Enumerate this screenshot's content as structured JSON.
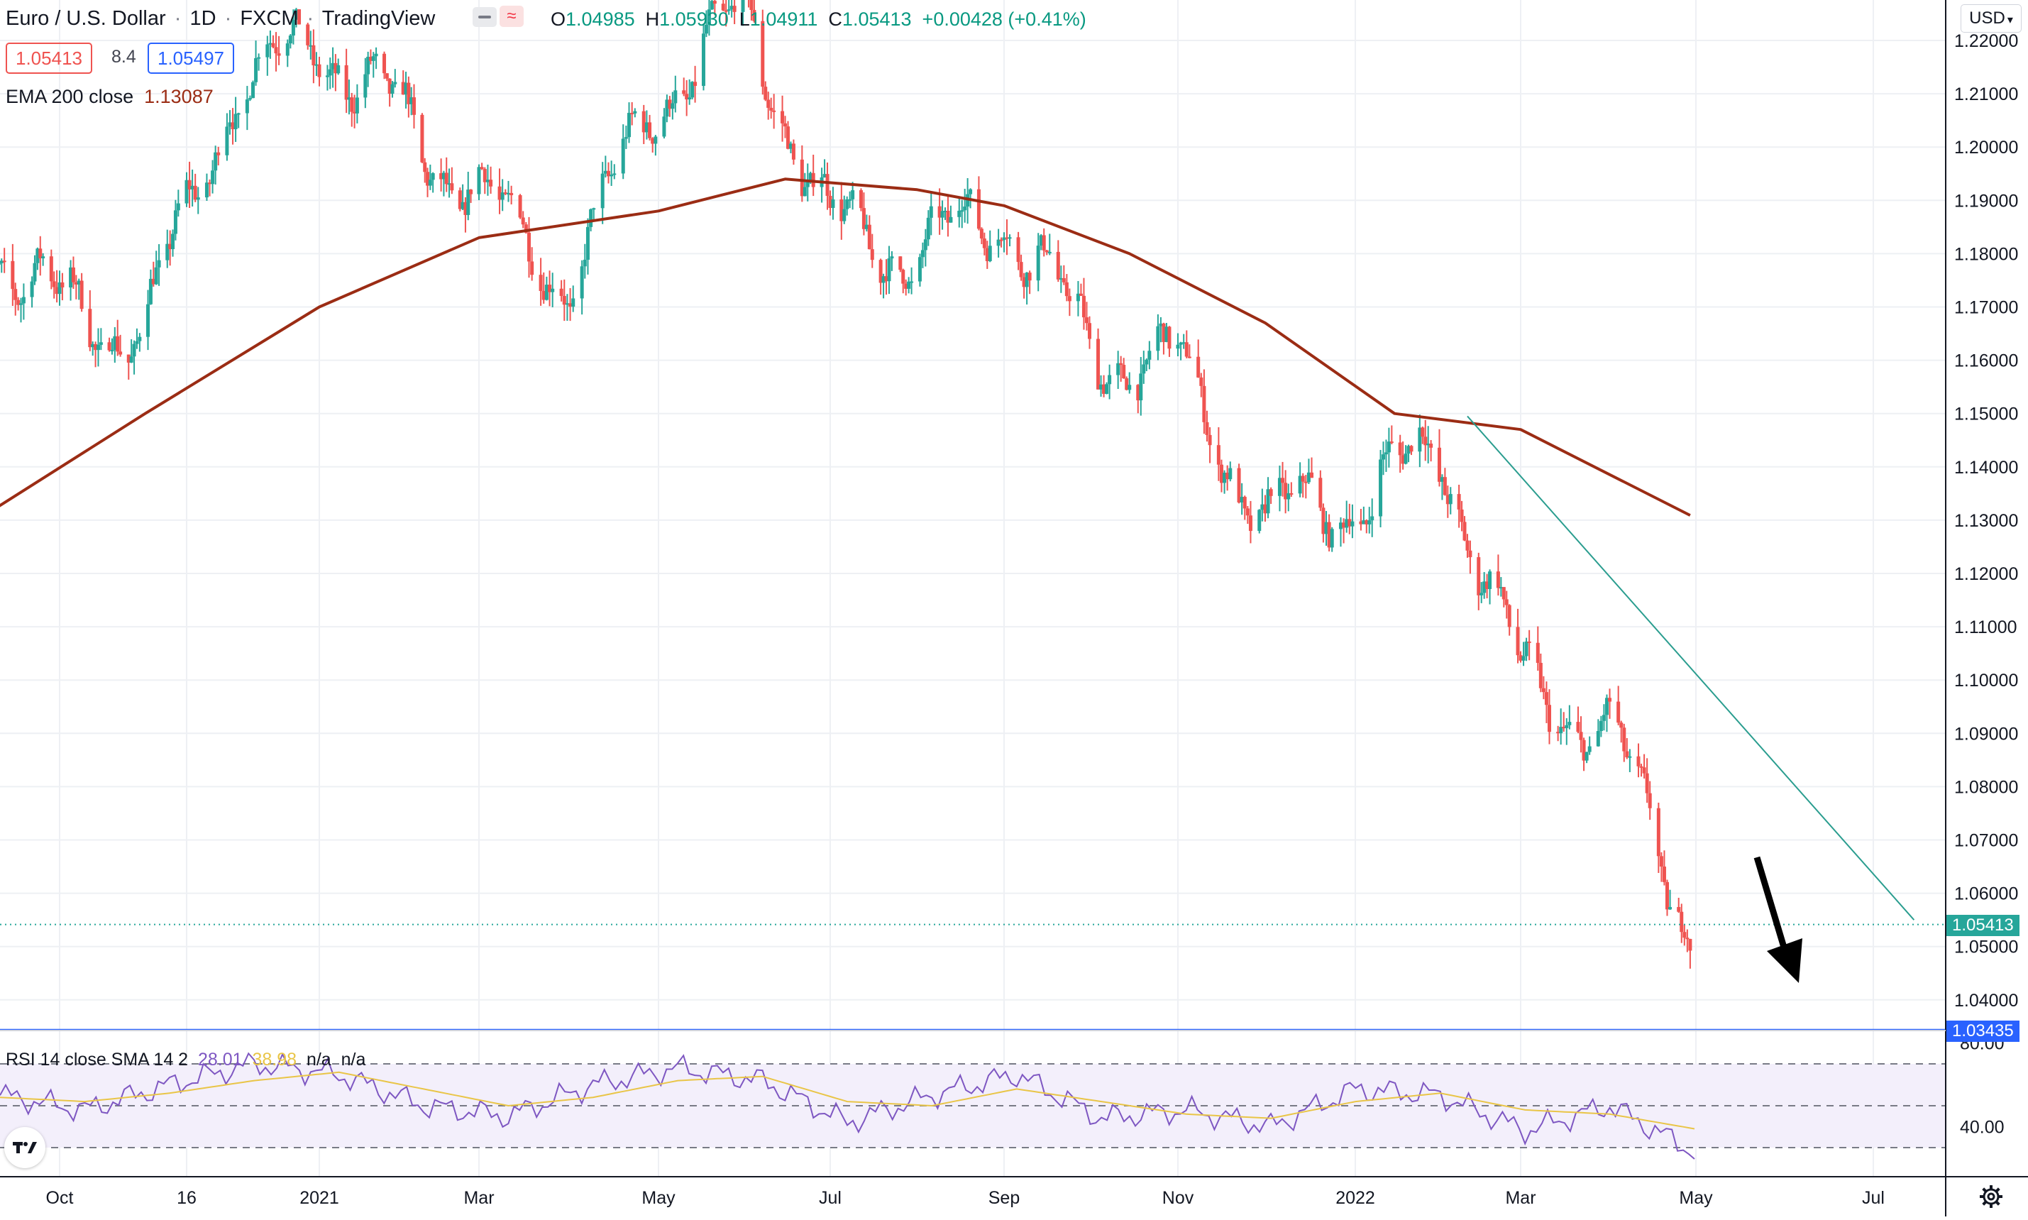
{
  "header": {
    "symbol": "Euro / U.S. Dollar",
    "interval": "1D",
    "exchange": "FXCM",
    "source": "TradingView",
    "ohlc": {
      "o_label": "O",
      "o_value": "1.04985",
      "h_label": "H",
      "h_value": "1.05930",
      "l_label": "L",
      "l_value": "1.04911",
      "c_label": "C",
      "c_value": "1.05413",
      "change": "+0.00428 (+0.41%)"
    },
    "bid": "1.05413",
    "spread": "8.4",
    "ask": "1.05497",
    "ema_label": "EMA 200 close",
    "ema_value": "1.13087",
    "currency": "USD"
  },
  "rsi": {
    "label": "RSI 14 close SMA 14 2",
    "value1": "28.01",
    "value2": "38.98",
    "na1": "n/a",
    "na2": "n/a"
  },
  "price_tags": {
    "last": "1.05413",
    "line": "1.03435"
  },
  "colors": {
    "up": "#26a69a",
    "down": "#ef5350",
    "ema": "#9b2c14",
    "trend": "#2a9d8f",
    "rsi": "#7e57c2",
    "rsi_ma": "#e9c547",
    "hline": "#2962ff"
  },
  "icons": {
    "logo": "tradingview-logo-icon",
    "settings": "gear-icon",
    "collapse": "minus-icon",
    "wave": "wave-icon"
  },
  "chart_data": [
    {
      "type": "candlestick",
      "title": "Euro / U.S. Dollar 1D FXCM",
      "x": [
        "2020-09-01",
        "2020-10-01",
        "2020-11-01",
        "2020-12-01",
        "2021-01-01",
        "2021-02-01",
        "2021-03-01",
        "2021-04-01",
        "2021-05-01",
        "2021-06-01",
        "2021-07-01",
        "2021-08-01",
        "2021-09-01",
        "2021-10-01",
        "2021-11-01",
        "2021-12-01",
        "2022-01-01",
        "2022-02-01",
        "2022-03-01",
        "2022-04-01",
        "2022-04-29"
      ],
      "close": [
        1.185,
        1.17,
        1.165,
        1.21,
        1.22,
        1.205,
        1.19,
        1.175,
        1.21,
        1.225,
        1.185,
        1.18,
        1.188,
        1.162,
        1.159,
        1.13,
        1.134,
        1.143,
        1.1,
        1.09,
        1.0541
      ],
      "x_tick_labels": [
        "Oct",
        "16",
        "2021",
        "Mar",
        "May",
        "Jul",
        "Sep",
        "Nov",
        "2022",
        "Mar",
        "May",
        "Jul"
      ],
      "y_tick_labels": [
        "1.22000",
        "1.21000",
        "1.20000",
        "1.19000",
        "1.18000",
        "1.17000",
        "1.16000",
        "1.15000",
        "1.14000",
        "1.13000",
        "1.12000",
        "1.11000",
        "1.10000",
        "1.09000",
        "1.08000",
        "1.07000",
        "1.06000",
        "1.05000",
        "1.04000"
      ],
      "ylim": [
        1.03435,
        1.223
      ],
      "last_price": 1.05413,
      "horizontal_line": 1.03435,
      "ema_200": {
        "name": "EMA 200 close",
        "x": [
          "2020-09-01",
          "2020-11-01",
          "2021-01-01",
          "2021-03-01",
          "2021-05-01",
          "2021-06-15",
          "2021-08-01",
          "2021-09-01",
          "2021-10-15",
          "2021-12-01",
          "2022-01-15",
          "2022-03-01",
          "2022-04-29"
        ],
        "values": [
          1.13,
          1.15,
          1.17,
          1.183,
          1.188,
          1.194,
          1.192,
          1.189,
          1.18,
          1.167,
          1.15,
          1.147,
          1.1309
        ]
      },
      "trendline": {
        "from": [
          "2022-02-10",
          1.1495
        ],
        "to": [
          "2022-07-15",
          1.055
        ]
      },
      "arrow": "down"
    },
    {
      "type": "line",
      "title": "RSI 14 close SMA 14 2",
      "series": [
        {
          "name": "RSI",
          "values": [
            55,
            48,
            60,
            70,
            65,
            50,
            45,
            60,
            68,
            62,
            42,
            55,
            65,
            44,
            48,
            40,
            58,
            55,
            38,
            50,
            28.01
          ]
        },
        {
          "name": "SMA",
          "values": [
            54,
            52,
            56,
            62,
            66,
            58,
            50,
            54,
            62,
            64,
            52,
            50,
            58,
            52,
            46,
            44,
            52,
            56,
            48,
            46,
            38.98
          ]
        }
      ],
      "y_tick_labels": [
        "80.00",
        "40.00"
      ],
      "bands": [
        70,
        50,
        30
      ]
    }
  ]
}
